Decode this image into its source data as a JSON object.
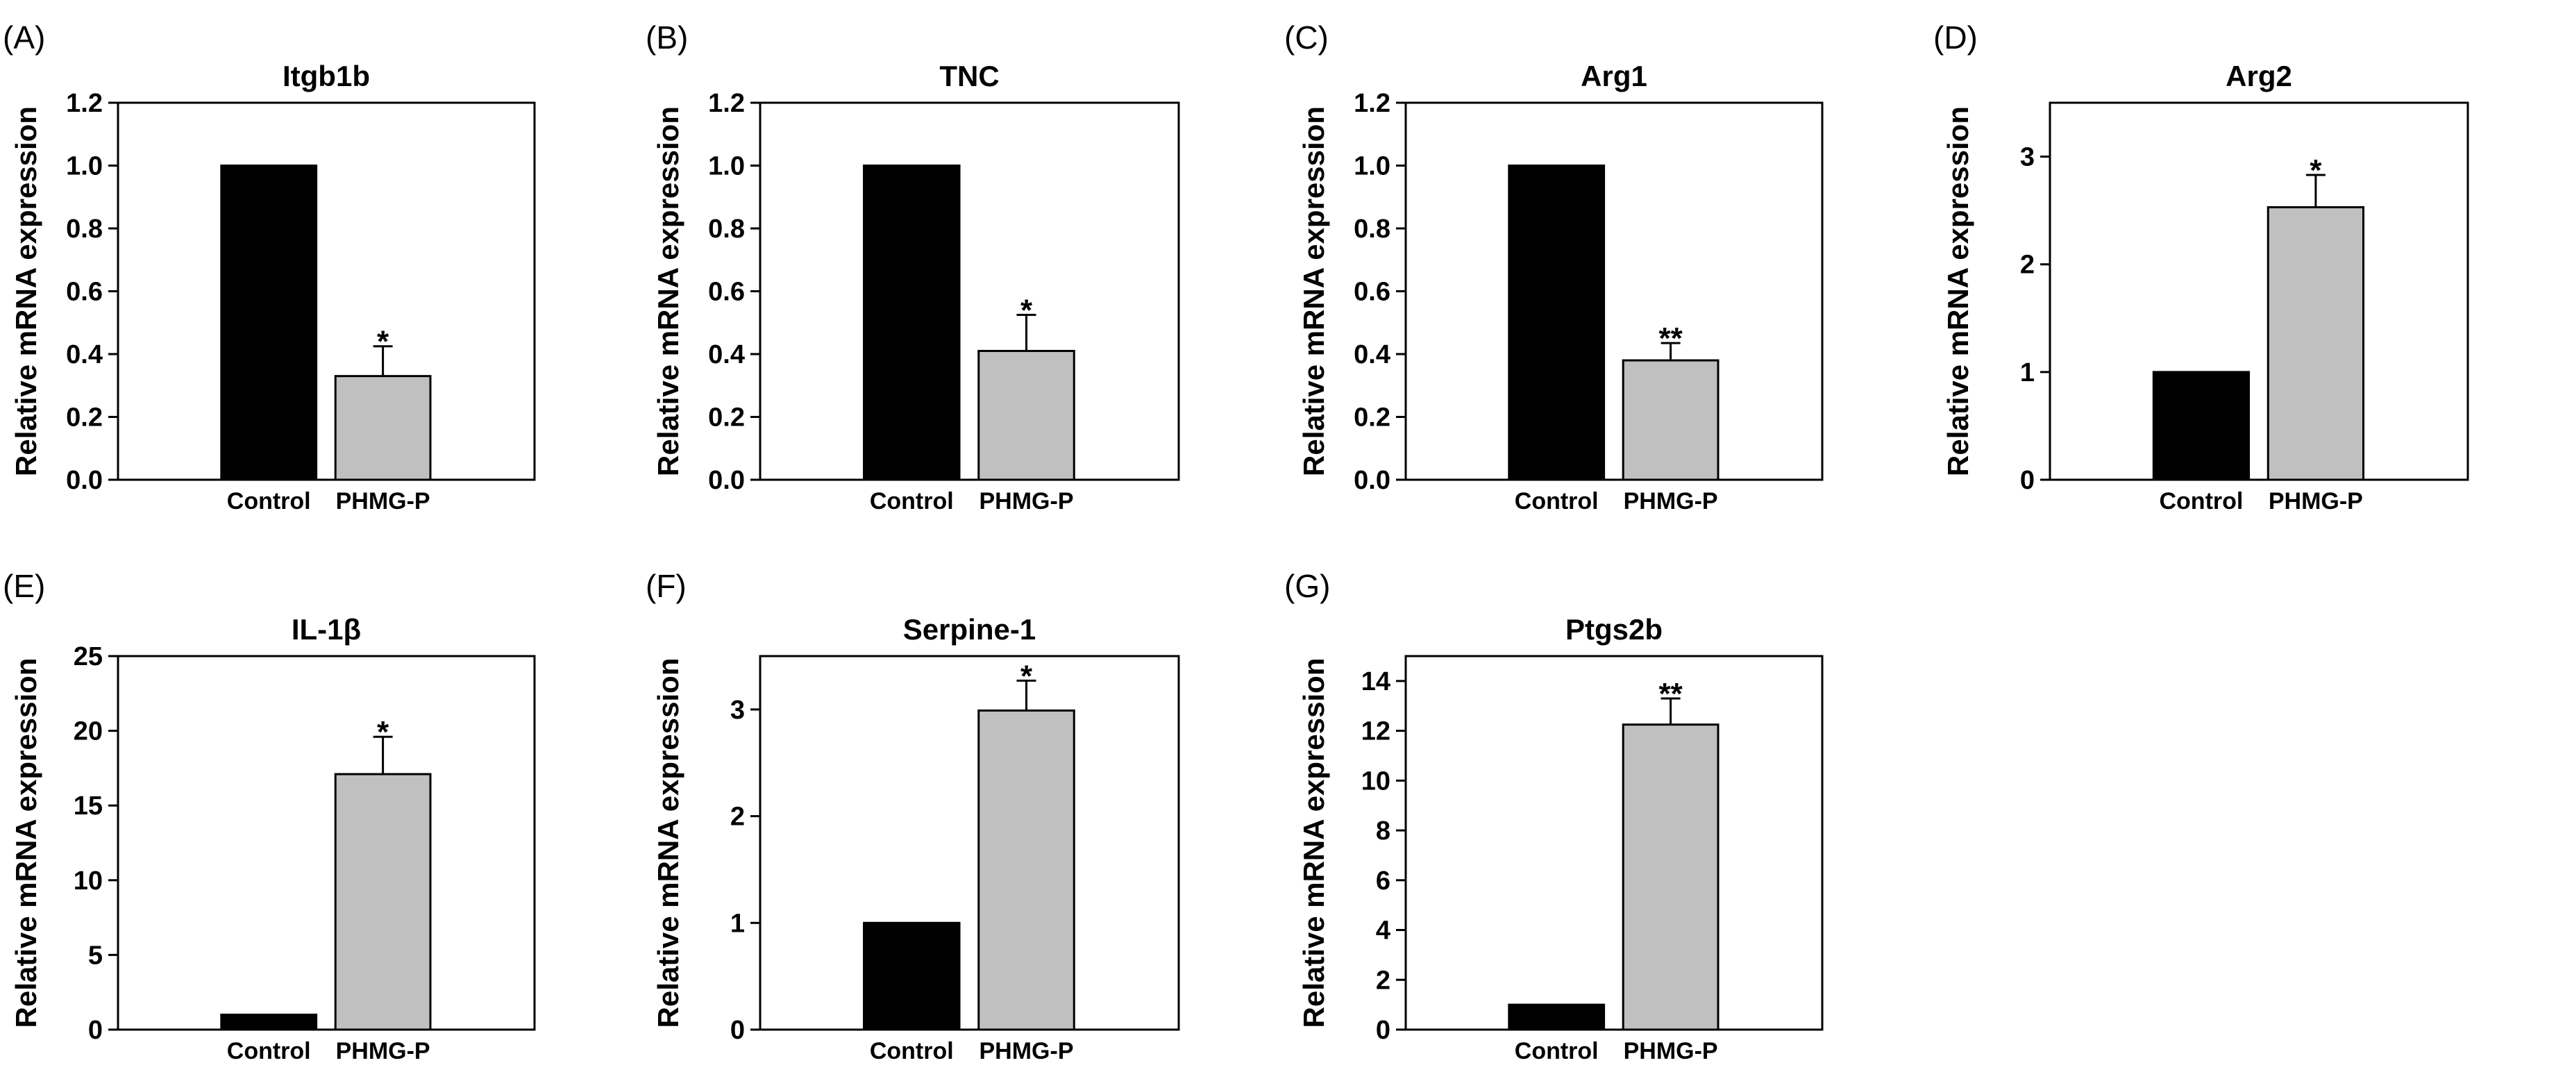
{
  "colors": {
    "control": "#000000",
    "treated": "#c0c0c0",
    "axis": "#000000"
  },
  "chart_data": [
    {
      "panel": "(A)",
      "type": "bar",
      "title": "Itgb1b",
      "ylabel": "Relative mRNA expression",
      "xlabel": "",
      "categories": [
        "Control",
        "PHMG-P"
      ],
      "values": [
        1.0,
        0.33
      ],
      "errors": [
        0,
        0.095
      ],
      "significance": [
        "",
        "*"
      ],
      "ylim": [
        0,
        1.2
      ],
      "ticks": [
        0,
        0.2,
        0.4,
        0.6,
        0.8,
        1.0,
        1.2
      ],
      "tick_labels": [
        "0.0",
        "0.2",
        "0.4",
        "0.6",
        "0.8",
        "1.0",
        "1.2"
      ]
    },
    {
      "panel": "(B)",
      "type": "bar",
      "title": "TNC",
      "ylabel": "Relative mRNA expression",
      "xlabel": "",
      "categories": [
        "Control",
        "PHMG-P"
      ],
      "values": [
        1.0,
        0.41
      ],
      "errors": [
        0,
        0.115
      ],
      "significance": [
        "",
        "*"
      ],
      "ylim": [
        0,
        1.2
      ],
      "ticks": [
        0,
        0.2,
        0.4,
        0.6,
        0.8,
        1.0,
        1.2
      ],
      "tick_labels": [
        "0.0",
        "0.2",
        "0.4",
        "0.6",
        "0.8",
        "1.0",
        "1.2"
      ]
    },
    {
      "panel": "(C)",
      "type": "bar",
      "title": "Arg1",
      "ylabel": "Relative mRNA expression",
      "xlabel": "",
      "categories": [
        "Control",
        "PHMG-P"
      ],
      "values": [
        1.0,
        0.38
      ],
      "errors": [
        0,
        0.055
      ],
      "significance": [
        "",
        "**"
      ],
      "ylim": [
        0,
        1.2
      ],
      "ticks": [
        0,
        0.2,
        0.4,
        0.6,
        0.8,
        1.0,
        1.2
      ],
      "tick_labels": [
        "0.0",
        "0.2",
        "0.4",
        "0.6",
        "0.8",
        "1.0",
        "1.2"
      ]
    },
    {
      "panel": "(D)",
      "type": "bar",
      "title": "Arg2",
      "ylabel": "Relative mRNA expression",
      "xlabel": "",
      "categories": [
        "Control",
        "PHMG-P"
      ],
      "values": [
        1.0,
        2.53
      ],
      "errors": [
        0,
        0.3
      ],
      "significance": [
        "",
        "*"
      ],
      "ylim": [
        0,
        3.5
      ],
      "ticks": [
        0,
        1,
        2,
        3
      ],
      "tick_labels": [
        "0",
        "1",
        "2",
        "3"
      ]
    },
    {
      "panel": "(E)",
      "type": "bar",
      "title": "IL-1β",
      "ylabel": "Relative mRNA expression",
      "xlabel": "",
      "categories": [
        "Control",
        "PHMG-P"
      ],
      "values": [
        1.0,
        17.1
      ],
      "errors": [
        0,
        2.5
      ],
      "significance": [
        "",
        "*"
      ],
      "ylim": [
        0,
        25
      ],
      "ticks": [
        0,
        5,
        10,
        15,
        20,
        25
      ],
      "tick_labels": [
        "0",
        "5",
        "10",
        "15",
        "20",
        "25"
      ]
    },
    {
      "panel": "(F)",
      "type": "bar",
      "title": "Serpine-1",
      "ylabel": "Relative mRNA expression",
      "xlabel": "",
      "categories": [
        "Control",
        "PHMG-P"
      ],
      "values": [
        1.0,
        2.99
      ],
      "errors": [
        0,
        0.28
      ],
      "significance": [
        "",
        "*"
      ],
      "ylim": [
        0,
        3.5
      ],
      "ticks": [
        0,
        1,
        2,
        3
      ],
      "tick_labels": [
        "0",
        "1",
        "2",
        "3"
      ]
    },
    {
      "panel": "(G)",
      "type": "bar",
      "title": "Ptgs2b",
      "ylabel": "Relative mRNA expression",
      "xlabel": "",
      "categories": [
        "Control",
        "PHMG-P"
      ],
      "values": [
        1.0,
        12.25
      ],
      "errors": [
        0,
        1.05
      ],
      "significance": [
        "",
        "**"
      ],
      "ylim": [
        0,
        15
      ],
      "ticks": [
        0,
        2,
        4,
        6,
        8,
        10,
        12,
        14
      ],
      "tick_labels": [
        "0",
        "2",
        "4",
        "6",
        "8",
        "10",
        "12",
        "14"
      ]
    }
  ]
}
